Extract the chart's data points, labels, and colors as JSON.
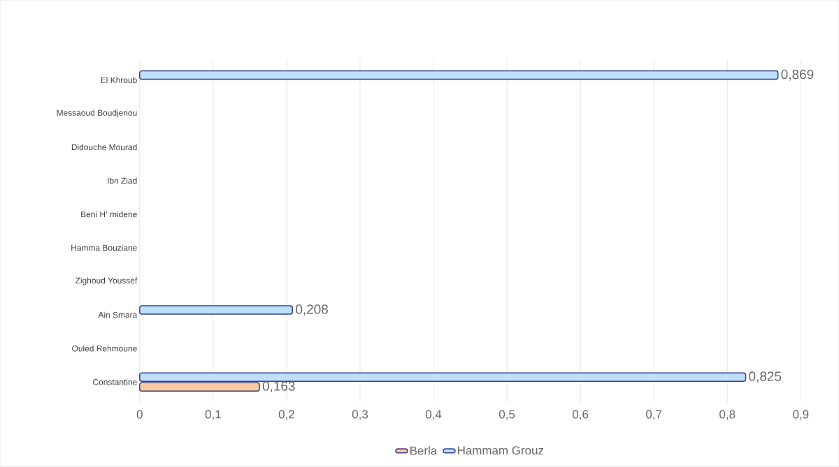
{
  "chart_data": {
    "type": "bar",
    "orientation": "horizontal",
    "categories": [
      "El Khroub",
      "Messaoud Boudjeriou",
      "Didouche Mourad",
      "Ibn Ziad",
      "Beni H’ midene",
      "Hamma Bouziane",
      "Zighoud Youssef",
      "Ain Smara",
      "Ouled Rehmoune",
      "Constantine"
    ],
    "series": [
      {
        "name": "Berla",
        "color": "#f8cba0",
        "values": [
          null,
          null,
          null,
          null,
          null,
          null,
          null,
          null,
          null,
          0.163
        ],
        "value_labels": [
          null,
          null,
          null,
          null,
          null,
          null,
          null,
          null,
          null,
          "0,163"
        ]
      },
      {
        "name": "Hammam Grouz",
        "color": "#bfe0fa",
        "values": [
          0.869,
          null,
          null,
          null,
          null,
          null,
          null,
          0.208,
          null,
          0.825
        ],
        "value_labels": [
          "0,869",
          null,
          null,
          null,
          null,
          null,
          null,
          "0,208",
          null,
          "0,825"
        ]
      }
    ],
    "xlim": [
      0,
      0.9
    ],
    "xticks": [
      0,
      {
        "value": 0.1,
        "label": "0,1"
      },
      {
        "value": 0.2,
        "label": "0,2"
      },
      {
        "value": 0.3,
        "label": "0,3"
      },
      {
        "value": 0.4,
        "label": "0,4"
      },
      {
        "value": 0.5,
        "label": "0,5"
      },
      {
        "value": 0.6,
        "label": "0,6"
      },
      {
        "value": 0.7,
        "label": "0,7"
      },
      {
        "value": 0.8,
        "label": "0,8"
      },
      {
        "value": 0.9,
        "label": "0,9"
      }
    ],
    "grid": "x",
    "legend": "bottom"
  }
}
